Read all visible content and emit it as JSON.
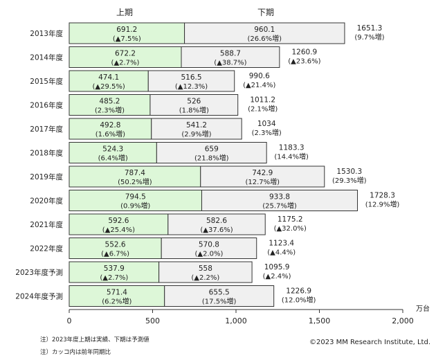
{
  "chart_data": {
    "type": "bar",
    "orientation": "horizontal",
    "stacked": true,
    "unit": "万台",
    "xlim": [
      0,
      2000
    ],
    "xticks": [
      0,
      500,
      1000,
      1500,
      2000
    ],
    "xtick_labels": [
      "0",
      "500",
      "1,000",
      "1,500",
      "2,000"
    ],
    "legend_left": "上期",
    "legend_right": "下期",
    "colors": {
      "first_half": "#ddf7d8",
      "second_half": "#f0f0f0",
      "stroke": "#333333"
    },
    "categories": [
      "2013年度",
      "2014年度",
      "2015年度",
      "2016年度",
      "2017年度",
      "2018年度",
      "2019年度",
      "2020年度",
      "2021年度",
      "2022年度",
      "2023年度予測",
      "2024年度予測"
    ],
    "series": [
      {
        "name": "上期",
        "values": [
          691.2,
          672.2,
          474.1,
          485.2,
          492.8,
          524.3,
          787.4,
          794.5,
          592.6,
          552.6,
          537.9,
          571.4
        ],
        "value_labels": [
          "691.2",
          "672.2",
          "474.1",
          "485.2",
          "492.8",
          "524.3",
          "787.4",
          "794.5",
          "592.6",
          "552.6",
          "537.9",
          "571.4"
        ],
        "change_labels": [
          "(▲7.5%)",
          "(▲2.7%)",
          "(▲29.5%)",
          "(2.3%増)",
          "(1.6%増)",
          "(6.4%増)",
          "(50.2%増)",
          "(0.9%増)",
          "(▲25.4%)",
          "(▲6.7%)",
          "(▲2.7%)",
          "(6.2%増)"
        ]
      },
      {
        "name": "下期",
        "values": [
          960.1,
          588.7,
          516.5,
          526,
          541.2,
          659,
          742.9,
          933.8,
          582.6,
          570.8,
          558,
          655.5
        ],
        "value_labels": [
          "960.1",
          "588.7",
          "516.5",
          "526",
          "541.2",
          "659",
          "742.9",
          "933.8",
          "582.6",
          "570.8",
          "558",
          "655.5"
        ],
        "change_labels": [
          "(26.6%増)",
          "(▲38.7%)",
          "(▲12.3%)",
          "(1.8%増)",
          "(2.9%増)",
          "(21.8%増)",
          "(12.7%増)",
          "(25.7%増)",
          "(▲37.6%)",
          "(▲2.0%)",
          "(▲2.2%)",
          "(17.5%増)"
        ]
      }
    ],
    "totals": {
      "values": [
        1651.3,
        1260.9,
        990.6,
        1011.2,
        1034,
        1183.3,
        1530.3,
        1728.3,
        1175.2,
        1123.4,
        1095.9,
        1226.9
      ],
      "value_labels": [
        "1651.3",
        "1260.9",
        "990.6",
        "1011.2",
        "1034",
        "1183.3",
        "1530.3",
        "1728.3",
        "1175.2",
        "1123.4",
        "1095.9",
        "1226.9"
      ],
      "change_labels": [
        "(9.7%増)",
        "(▲23.6%)",
        "(▲21.4%)",
        "(2.1%増)",
        "(2.3%増)",
        "(14.4%増)",
        "(29.3%増)",
        "(12.9%増)",
        "(▲32.0%)",
        "(▲4.4%)",
        "(▲2.4%)",
        "(12.0%増)"
      ]
    },
    "notes": [
      "注）2023年度上期は実績、下期は予測値",
      "注）カッコ内は前年同期比"
    ],
    "copyright": "©2023 MM Research Institute, Ltd."
  }
}
